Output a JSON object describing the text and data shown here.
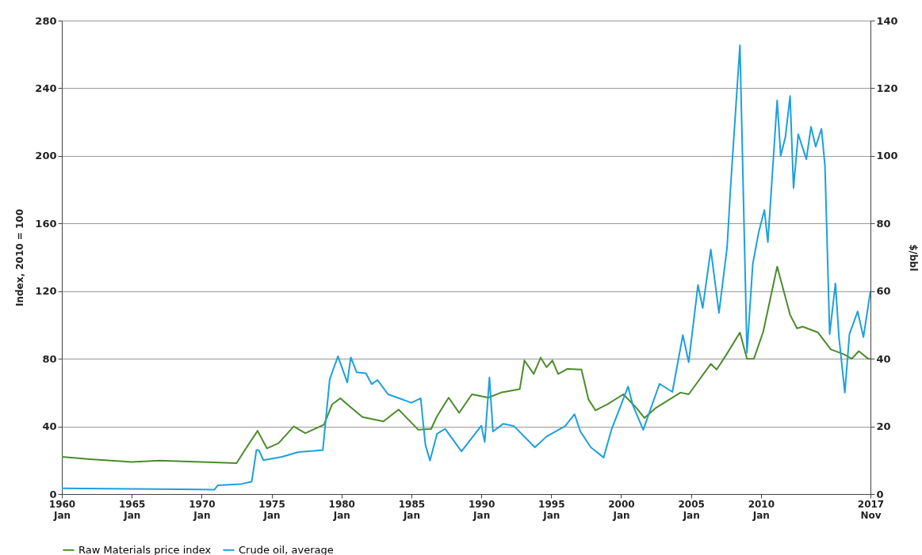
{
  "chart_data": {
    "type": "line",
    "ylabel": "Index, 2010 = 100",
    "y2label": "$/bbl",
    "xlim": [
      "1960-01",
      "2017-11"
    ],
    "xticks": [
      {
        "value": "1960-01",
        "label": "1960 Jan"
      },
      {
        "value": "1965-01",
        "label": "1965 Jan"
      },
      {
        "value": "1970-01",
        "label": "1970 Jan"
      },
      {
        "value": "1975-01",
        "label": "1975 Jan"
      },
      {
        "value": "1980-01",
        "label": "1980 Jan"
      },
      {
        "value": "1985-01",
        "label": "1985 Jan"
      },
      {
        "value": "1990-01",
        "label": "1990 Jan"
      },
      {
        "value": "1995-01",
        "label": "1995 Jan"
      },
      {
        "value": "2000-01",
        "label": "2000 Jan"
      },
      {
        "value": "2005-01",
        "label": "2005 Jan"
      },
      {
        "value": "2010-01",
        "label": "2010 Jan"
      },
      {
        "value": "2017-11",
        "label": "2017 Nov"
      }
    ],
    "ylim": [
      0,
      280
    ],
    "yticks": [
      0,
      40,
      80,
      120,
      160,
      200,
      240,
      280
    ],
    "y2lim": [
      0,
      140
    ],
    "y2ticks": [
      0,
      20,
      40,
      60,
      80,
      100,
      120,
      140
    ],
    "grid": "y",
    "legend": "bottom",
    "series": [
      {
        "name": "Raw Materials price index",
        "color": "#4a8c2a",
        "x": [
          "1960-01",
          "1962-01",
          "1965-01",
          "1967-01",
          "1970-01",
          "1972-07",
          "1973-02",
          "1974-01",
          "1974-09",
          "1975-07",
          "1976-08",
          "1977-06",
          "1978-10",
          "1979-05",
          "1979-12",
          "1980-06",
          "1981-07",
          "1983-01",
          "1984-02",
          "1985-07",
          "1986-06",
          "1986-11",
          "1987-09",
          "1988-06",
          "1989-05",
          "1990-07",
          "1991-06",
          "1992-10",
          "1993-02",
          "1993-10",
          "1994-04",
          "1994-09",
          "1995-02",
          "1995-07",
          "1996-03",
          "1997-03",
          "1997-09",
          "1998-03",
          "1999-01",
          "2000-03",
          "2001-02",
          "2001-09",
          "2002-07",
          "2004-04",
          "2004-11",
          "2006-06",
          "2006-11",
          "2007-07",
          "2008-07",
          "2009-01",
          "2009-07",
          "2010-03",
          "2011-03",
          "2012-02",
          "2012-08",
          "2013-01",
          "2014-02",
          "2015-01",
          "2015-12",
          "2016-07",
          "2017-01",
          "2017-09",
          "2017-11"
        ],
        "values": [
          22,
          20.6,
          19,
          19.8,
          19,
          18.3,
          26,
          37.4,
          27,
          30,
          40,
          36,
          41,
          53,
          56.6,
          53,
          45.5,
          43,
          50,
          38,
          38.5,
          46,
          57,
          48,
          59,
          57,
          60,
          62,
          79,
          71,
          80.7,
          75,
          79,
          71,
          74,
          73.6,
          56,
          49.5,
          53,
          59,
          51,
          45,
          51,
          60,
          59,
          77,
          73.6,
          82,
          95.5,
          80,
          80,
          96,
          134.5,
          106,
          98,
          99,
          95.5,
          85.5,
          82.7,
          80,
          84.5,
          80,
          80
        ]
      },
      {
        "name": "Crude oil, average",
        "color": "#1ca0dc",
        "axis": "y2",
        "x": [
          "1960-01",
          "1965-01",
          "1970-12",
          "1971-03",
          "1972-10",
          "1973-08",
          "1973-12",
          "1974-02",
          "1974-06",
          "1975-10",
          "1976-12",
          "1978-09",
          "1979-03",
          "1979-10",
          "1980-06",
          "1980-09",
          "1981-02",
          "1981-10",
          "1982-03",
          "1982-08",
          "1983-05",
          "1985-01",
          "1985-09",
          "1986-01",
          "1986-05",
          "1986-11",
          "1987-06",
          "1988-08",
          "1990-01",
          "1990-04",
          "1990-08",
          "1990-11",
          "1991-08",
          "1992-05",
          "1993-11",
          "1994-09",
          "1996-01",
          "1996-09",
          "1997-02",
          "1997-11",
          "1998-10",
          "1999-05",
          "1999-12",
          "2000-07",
          "2000-11",
          "2001-08",
          "2002-10",
          "2003-09",
          "2004-06",
          "2004-11",
          "2005-07",
          "2005-11",
          "2006-06",
          "2007-01",
          "2007-08",
          "2007-11",
          "2008-07",
          "2009-01",
          "2009-06",
          "2009-11",
          "2010-04",
          "2010-07",
          "2011-03",
          "2011-06",
          "2011-10",
          "2012-02",
          "2012-05",
          "2012-09",
          "2013-04",
          "2013-08",
          "2013-12",
          "2014-05",
          "2014-08",
          "2014-12",
          "2015-05",
          "2015-08",
          "2016-01",
          "2016-05",
          "2016-12",
          "2017-05",
          "2017-11"
        ],
        "values": [
          1.7,
          1.5,
          1.3,
          2.6,
          2.9,
          3.7,
          13,
          13,
          10,
          11,
          12.4,
          13,
          34,
          40.7,
          33,
          40.4,
          36,
          35.7,
          32.5,
          33.7,
          29.5,
          27,
          28.3,
          14.6,
          9.9,
          17.8,
          19.3,
          12.6,
          20.2,
          15.4,
          34.5,
          18.5,
          20.8,
          20.1,
          13.8,
          17,
          20.1,
          23.6,
          18.5,
          13.8,
          10.8,
          19.3,
          25.5,
          31.8,
          26.3,
          19,
          32.6,
          30.2,
          47,
          39,
          61.8,
          55,
          72.3,
          53.6,
          73,
          91,
          132.7,
          41.8,
          68,
          77.3,
          84,
          74.5,
          116.4,
          100,
          105.5,
          117.7,
          90.5,
          106.4,
          99,
          108.6,
          102.7,
          108,
          97,
          47.3,
          62.3,
          46.4,
          30,
          47.3,
          54,
          46.4,
          60
        ]
      }
    ]
  }
}
